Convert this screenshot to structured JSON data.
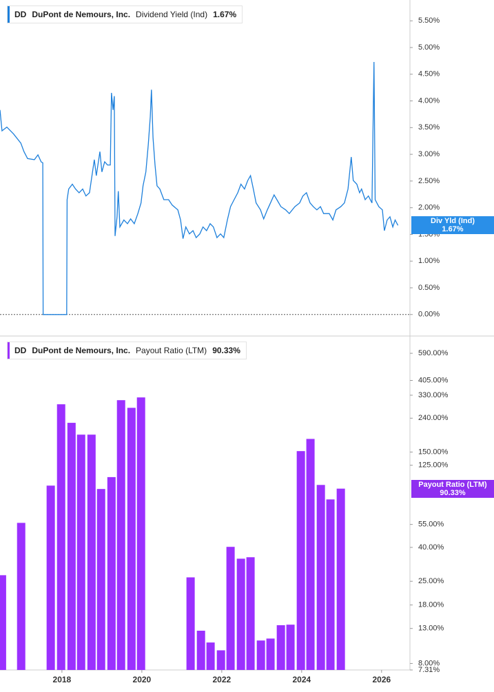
{
  "chart_data": [
    {
      "type": "line",
      "ticker": "DD",
      "company": "DuPont de Nemours, Inc.",
      "title": "Dividend Yield (Ind)",
      "last_label": "1.67%",
      "flag_label": "Div Yld (Ind)",
      "color": "#1c7fdb",
      "flag_color": "#2a8fe8",
      "xlim": [
        2016.45,
        2026.71
      ],
      "ylim": [
        -0.39,
        5.89
      ],
      "zero_line": true,
      "yticks": [
        {
          "value": 0,
          "label": "0.00%"
        },
        {
          "value": 0.5,
          "label": "0.50%"
        },
        {
          "value": 1,
          "label": "1.00%"
        },
        {
          "value": 1.5,
          "label": "1.50%"
        },
        {
          "value": 2,
          "label": "2.00%"
        },
        {
          "value": 2.5,
          "label": "2.50%"
        },
        {
          "value": 3,
          "label": "3.00%"
        },
        {
          "value": 3.5,
          "label": "3.50%"
        },
        {
          "value": 4,
          "label": "4.00%"
        },
        {
          "value": 4.5,
          "label": "4.50%"
        },
        {
          "value": 5,
          "label": "5.00%"
        },
        {
          "value": 5.5,
          "label": "5.50%"
        }
      ],
      "x": [
        2016.45,
        2016.5,
        2016.62,
        2016.79,
        2016.97,
        2017.05,
        2017.14,
        2017.31,
        2017.4,
        2017.48,
        2017.52,
        2017.53,
        2018.12,
        2018.13,
        2018.17,
        2018.26,
        2018.34,
        2018.43,
        2018.52,
        2018.6,
        2018.69,
        2018.74,
        2018.81,
        2018.86,
        2018.95,
        2019.0,
        2019.07,
        2019.14,
        2019.21,
        2019.24,
        2019.28,
        2019.31,
        2019.33,
        2019.38,
        2019.41,
        2019.45,
        2019.55,
        2019.64,
        2019.72,
        2019.81,
        2019.9,
        2019.98,
        2020.03,
        2020.1,
        2020.16,
        2020.21,
        2020.24,
        2020.28,
        2020.33,
        2020.38,
        2020.45,
        2020.55,
        2020.67,
        2020.76,
        2020.9,
        2020.97,
        2021.03,
        2021.1,
        2021.19,
        2021.28,
        2021.36,
        2021.45,
        2021.53,
        2021.62,
        2021.71,
        2021.79,
        2021.88,
        2021.97,
        2022.05,
        2022.14,
        2022.22,
        2022.31,
        2022.4,
        2022.48,
        2022.57,
        2022.65,
        2022.72,
        2022.79,
        2022.86,
        2022.97,
        2023.05,
        2023.14,
        2023.22,
        2023.31,
        2023.38,
        2023.48,
        2023.6,
        2023.69,
        2023.83,
        2023.95,
        2024.03,
        2024.12,
        2024.21,
        2024.29,
        2024.38,
        2024.47,
        2024.55,
        2024.69,
        2024.78,
        2024.86,
        2024.98,
        2025.07,
        2025.16,
        2025.24,
        2025.29,
        2025.38,
        2025.45,
        2025.5,
        2025.59,
        2025.67,
        2025.76,
        2025.81,
        2025.84,
        2025.93,
        2026.02,
        2026.07,
        2026.14,
        2026.21,
        2026.28,
        2026.34,
        2026.41
      ],
      "values": [
        3.83,
        3.44,
        3.51,
        3.38,
        3.21,
        3.05,
        2.92,
        2.9,
        2.99,
        2.86,
        2.84,
        0,
        0,
        2.15,
        2.35,
        2.44,
        2.35,
        2.28,
        2.35,
        2.22,
        2.28,
        2.54,
        2.9,
        2.6,
        3.05,
        2.67,
        2.86,
        2.8,
        2.8,
        4.15,
        3.83,
        4.09,
        1.47,
        1.83,
        2.31,
        1.64,
        1.77,
        1.7,
        1.79,
        1.7,
        1.89,
        2.09,
        2.41,
        2.67,
        3.18,
        3.7,
        4.21,
        3.31,
        2.8,
        2.41,
        2.35,
        2.15,
        2.15,
        2.05,
        1.96,
        1.77,
        1.42,
        1.64,
        1.51,
        1.57,
        1.44,
        1.51,
        1.64,
        1.57,
        1.7,
        1.64,
        1.44,
        1.51,
        1.44,
        1.77,
        2.02,
        2.15,
        2.28,
        2.44,
        2.35,
        2.51,
        2.6,
        2.35,
        2.09,
        1.96,
        1.79,
        1.96,
        2.09,
        2.24,
        2.15,
        2.02,
        1.96,
        1.89,
        2.02,
        2.09,
        2.22,
        2.28,
        2.09,
        2.02,
        1.96,
        2.02,
        1.89,
        1.89,
        1.77,
        1.96,
        2.02,
        2.09,
        2.35,
        2.95,
        2.51,
        2.44,
        2.28,
        2.35,
        2.15,
        2.22,
        2.09,
        4.73,
        2.15,
        2.02,
        1.96,
        1.57,
        1.77,
        1.83,
        1.64,
        1.77,
        1.67
      ]
    },
    {
      "type": "bar",
      "ticker": "DD",
      "company": "DuPont de Nemours, Inc.",
      "title": "Payout Ratio (LTM)",
      "last_label": "90.33%",
      "flag_label": "Payout Ratio (LTM)",
      "color": "#9b30ff",
      "flag_color": "#8f2ff0",
      "xlim": [
        2016.45,
        2026.71
      ],
      "ylim": [
        7.31,
        708
      ],
      "log_scale": true,
      "yticks": [
        {
          "value": 7.31,
          "label": "7.31%"
        },
        {
          "value": 8,
          "label": "8.00%"
        },
        {
          "value": 13,
          "label": "13.00%"
        },
        {
          "value": 18,
          "label": "18.00%"
        },
        {
          "value": 25,
          "label": "25.00%"
        },
        {
          "value": 40,
          "label": "40.00%"
        },
        {
          "value": 55,
          "label": "55.00%"
        },
        {
          "value": 125,
          "label": "125.00%"
        },
        {
          "value": 150,
          "label": "150.00%"
        },
        {
          "value": 240,
          "label": "240.00%"
        },
        {
          "value": 330,
          "label": "330.00%"
        },
        {
          "value": 405,
          "label": "405.00%"
        },
        {
          "value": 590,
          "label": "590.00%"
        }
      ],
      "xticks": [
        2018,
        2020,
        2022,
        2024,
        2026
      ],
      "x": [
        2016.5,
        2016.98,
        2017.72,
        2017.98,
        2018.24,
        2018.48,
        2018.74,
        2018.98,
        2019.24,
        2019.48,
        2019.74,
        2019.98,
        2021.22,
        2021.48,
        2021.72,
        2021.98,
        2022.22,
        2022.48,
        2022.72,
        2022.98,
        2023.22,
        2023.48,
        2023.72,
        2023.98,
        2024.22,
        2024.48,
        2024.72,
        2024.98
      ],
      "values": [
        27.2,
        56.2,
        94.2,
        291,
        225,
        191,
        191,
        89.9,
        106,
        308,
        277,
        320,
        26.4,
        12.6,
        10.7,
        9.6,
        40.3,
        34.2,
        34.9,
        11.0,
        11.3,
        13.6,
        13.7,
        152,
        180,
        95.1,
        77.8,
        90.33
      ]
    }
  ]
}
